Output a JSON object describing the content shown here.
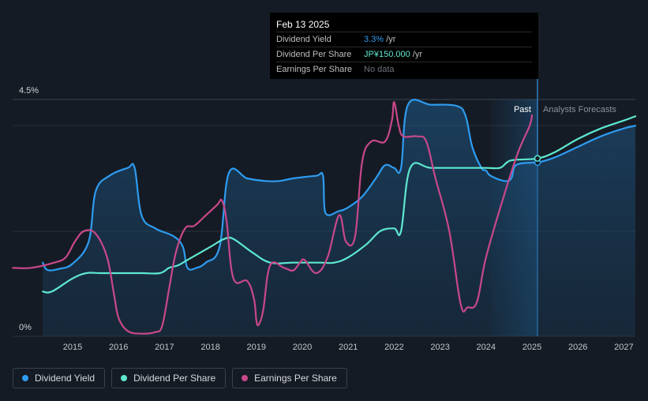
{
  "tooltip": {
    "date": "Feb 13 2025",
    "rows": [
      {
        "label": "Dividend Yield",
        "value": "3.3%",
        "unit": " /yr",
        "color": "#2e9cf0"
      },
      {
        "label": "Dividend Per Share",
        "value": "JP¥150.000",
        "unit": " /yr",
        "color": "#5ee8d0"
      },
      {
        "label": "Earnings Per Share",
        "value": "No data",
        "unit": "",
        "color": "#6d737d"
      }
    ]
  },
  "past_label": "Past",
  "forecast_label": "Analysts Forecasts",
  "legend": [
    {
      "label": "Dividend Yield",
      "color": "#2e9cf0"
    },
    {
      "label": "Dividend Per Share",
      "color": "#5ee8d0"
    },
    {
      "label": "Earnings Per Share",
      "color": "#c8488a"
    }
  ],
  "chart_data": {
    "type": "line",
    "y_ticks": [
      "4.5%",
      "0%"
    ],
    "ylim": [
      0,
      4.5
    ],
    "x_ticks": [
      "2015",
      "2016",
      "2017",
      "2018",
      "2019",
      "2020",
      "2021",
      "2022",
      "2023",
      "2024",
      "2025",
      "2026",
      "2027"
    ],
    "xlim": [
      2013.7,
      2027.25
    ],
    "series": [
      {
        "name": "Dividend Yield",
        "color": "#2e9cf0",
        "points": [
          [
            2014.35,
            1.4
          ],
          [
            2014.45,
            1.26
          ],
          [
            2014.7,
            1.28
          ],
          [
            2015.0,
            1.38
          ],
          [
            2015.35,
            1.8
          ],
          [
            2015.5,
            2.75
          ],
          [
            2015.8,
            3.05
          ],
          [
            2016.2,
            3.2
          ],
          [
            2016.35,
            3.2
          ],
          [
            2016.5,
            2.3
          ],
          [
            2016.8,
            2.05
          ],
          [
            2017.2,
            1.9
          ],
          [
            2017.4,
            1.7
          ],
          [
            2017.5,
            1.3
          ],
          [
            2017.7,
            1.3
          ],
          [
            2017.9,
            1.4
          ],
          [
            2018.2,
            1.7
          ],
          [
            2018.4,
            3.1
          ],
          [
            2018.8,
            3.0
          ],
          [
            2019.2,
            2.95
          ],
          [
            2019.5,
            2.95
          ],
          [
            2019.8,
            3.0
          ],
          [
            2020.3,
            3.05
          ],
          [
            2020.45,
            3.05
          ],
          [
            2020.5,
            2.35
          ],
          [
            2020.8,
            2.38
          ],
          [
            2021.0,
            2.45
          ],
          [
            2021.3,
            2.65
          ],
          [
            2021.6,
            3.0
          ],
          [
            2021.8,
            3.25
          ],
          [
            2022.0,
            3.2
          ],
          [
            2022.15,
            3.2
          ],
          [
            2022.3,
            4.4
          ],
          [
            2022.8,
            4.4
          ],
          [
            2023.35,
            4.38
          ],
          [
            2023.55,
            4.2
          ],
          [
            2023.7,
            3.6
          ],
          [
            2023.9,
            3.2
          ],
          [
            2024.0,
            3.15
          ],
          [
            2024.1,
            3.05
          ],
          [
            2024.4,
            2.95
          ],
          [
            2024.55,
            3.0
          ],
          [
            2024.65,
            3.25
          ],
          [
            2025.0,
            3.3
          ],
          [
            2025.12,
            3.3
          ],
          [
            2025.5,
            3.4
          ],
          [
            2026.0,
            3.6
          ],
          [
            2026.5,
            3.8
          ],
          [
            2027.0,
            3.95
          ],
          [
            2027.25,
            4.0
          ]
        ]
      },
      {
        "name": "Dividend Per Share",
        "color": "#5ee8d0",
        "points": [
          [
            2014.35,
            0.85
          ],
          [
            2014.55,
            0.85
          ],
          [
            2015.0,
            1.1
          ],
          [
            2015.3,
            1.2
          ],
          [
            2015.6,
            1.2
          ],
          [
            2016.0,
            1.2
          ],
          [
            2016.5,
            1.2
          ],
          [
            2016.9,
            1.2
          ],
          [
            2017.1,
            1.3
          ],
          [
            2017.3,
            1.35
          ],
          [
            2017.5,
            1.45
          ],
          [
            2018.0,
            1.7
          ],
          [
            2018.3,
            1.85
          ],
          [
            2018.5,
            1.85
          ],
          [
            2018.9,
            1.6
          ],
          [
            2019.3,
            1.4
          ],
          [
            2019.8,
            1.4
          ],
          [
            2020.4,
            1.4
          ],
          [
            2020.7,
            1.4
          ],
          [
            2021.0,
            1.5
          ],
          [
            2021.4,
            1.75
          ],
          [
            2021.7,
            2.0
          ],
          [
            2022.0,
            2.05
          ],
          [
            2022.15,
            2.0
          ],
          [
            2022.35,
            3.2
          ],
          [
            2022.8,
            3.2
          ],
          [
            2023.5,
            3.2
          ],
          [
            2024.0,
            3.2
          ],
          [
            2024.3,
            3.2
          ],
          [
            2024.45,
            3.3
          ],
          [
            2024.6,
            3.35
          ],
          [
            2025.12,
            3.38
          ],
          [
            2025.5,
            3.5
          ],
          [
            2026.0,
            3.75
          ],
          [
            2026.5,
            3.95
          ],
          [
            2027.0,
            4.1
          ],
          [
            2027.25,
            4.18
          ]
        ]
      },
      {
        "name": "Earnings Per Share",
        "color": "#c8488a",
        "points": [
          [
            2013.7,
            1.3
          ],
          [
            2014.1,
            1.3
          ],
          [
            2014.6,
            1.4
          ],
          [
            2014.85,
            1.5
          ],
          [
            2015.05,
            1.8
          ],
          [
            2015.25,
            2.0
          ],
          [
            2015.5,
            1.95
          ],
          [
            2015.75,
            1.5
          ],
          [
            2015.9,
            0.8
          ],
          [
            2016.0,
            0.35
          ],
          [
            2016.2,
            0.1
          ],
          [
            2016.5,
            0.05
          ],
          [
            2016.8,
            0.08
          ],
          [
            2016.95,
            0.2
          ],
          [
            2017.1,
            0.9
          ],
          [
            2017.25,
            1.6
          ],
          [
            2017.45,
            2.05
          ],
          [
            2017.65,
            2.1
          ],
          [
            2017.9,
            2.3
          ],
          [
            2018.15,
            2.5
          ],
          [
            2018.25,
            2.58
          ],
          [
            2018.35,
            2.2
          ],
          [
            2018.5,
            1.1
          ],
          [
            2018.8,
            1.05
          ],
          [
            2018.95,
            0.7
          ],
          [
            2019.0,
            0.3
          ],
          [
            2019.05,
            0.22
          ],
          [
            2019.15,
            0.5
          ],
          [
            2019.3,
            1.35
          ],
          [
            2019.6,
            1.3
          ],
          [
            2019.8,
            1.25
          ],
          [
            2019.95,
            1.4
          ],
          [
            2020.05,
            1.45
          ],
          [
            2020.3,
            1.2
          ],
          [
            2020.55,
            1.5
          ],
          [
            2020.8,
            2.3
          ],
          [
            2020.95,
            1.8
          ],
          [
            2021.15,
            1.9
          ],
          [
            2021.3,
            3.3
          ],
          [
            2021.5,
            3.7
          ],
          [
            2021.8,
            3.7
          ],
          [
            2021.95,
            4.1
          ],
          [
            2022.0,
            4.45
          ],
          [
            2022.1,
            4.0
          ],
          [
            2022.2,
            3.8
          ],
          [
            2022.5,
            3.8
          ],
          [
            2022.7,
            3.7
          ],
          [
            2022.9,
            3.0
          ],
          [
            2023.2,
            2.0
          ],
          [
            2023.45,
            0.6
          ],
          [
            2023.6,
            0.55
          ],
          [
            2023.8,
            0.65
          ],
          [
            2024.0,
            1.5
          ],
          [
            2024.4,
            2.7
          ],
          [
            2024.7,
            3.5
          ],
          [
            2024.95,
            4.0
          ],
          [
            2025.0,
            4.2
          ]
        ]
      }
    ],
    "markers": [
      {
        "series": "Dividend Yield",
        "x": 2025.12,
        "y": 3.3
      },
      {
        "series": "Dividend Per Share",
        "x": 2025.12,
        "y": 3.38
      }
    ],
    "past_region": [
      2024.1,
      2025.12
    ]
  }
}
